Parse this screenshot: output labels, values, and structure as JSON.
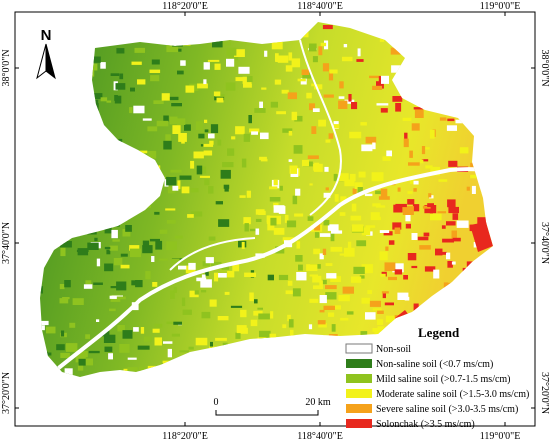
{
  "map": {
    "top_ticks": [
      "118°20'0\"E",
      "118°40'0\"E",
      "119°0'0\"E"
    ],
    "bottom_ticks": [
      "118°20'0\"E",
      "118°40'0\"E",
      "119°0'0\"E"
    ],
    "left_ticks": [
      "38°0'0\"N",
      "37°40'0\"N",
      "37°20'0\"N"
    ],
    "right_ticks": [
      "38°0'0\"N",
      "37°40'0\"N",
      "37°20'0\"N"
    ],
    "north_label": "N",
    "scale_bar": {
      "labels": [
        "0",
        "20 km"
      ]
    },
    "legend": {
      "title": "Legend",
      "items": [
        {
          "label": "Non-soil",
          "color": "#ffffff"
        },
        {
          "label": "Non-saline soil (<0.7 ms/cm)",
          "color": "#2e7d1a"
        },
        {
          "label": "Mild saline soil (>0.7-1.5 ms/cm)",
          "color": "#8fc31f"
        },
        {
          "label": "Moderate saline soil (>1.5-3.0 ms/cm)",
          "color": "#f2f21a"
        },
        {
          "label": "Severe saline soil (>3.0-3.5 ms/cm)",
          "color": "#f5a21b"
        },
        {
          "label": "Solonchak (>3.5 ms/cm)",
          "color": "#e8281e"
        }
      ]
    }
  }
}
